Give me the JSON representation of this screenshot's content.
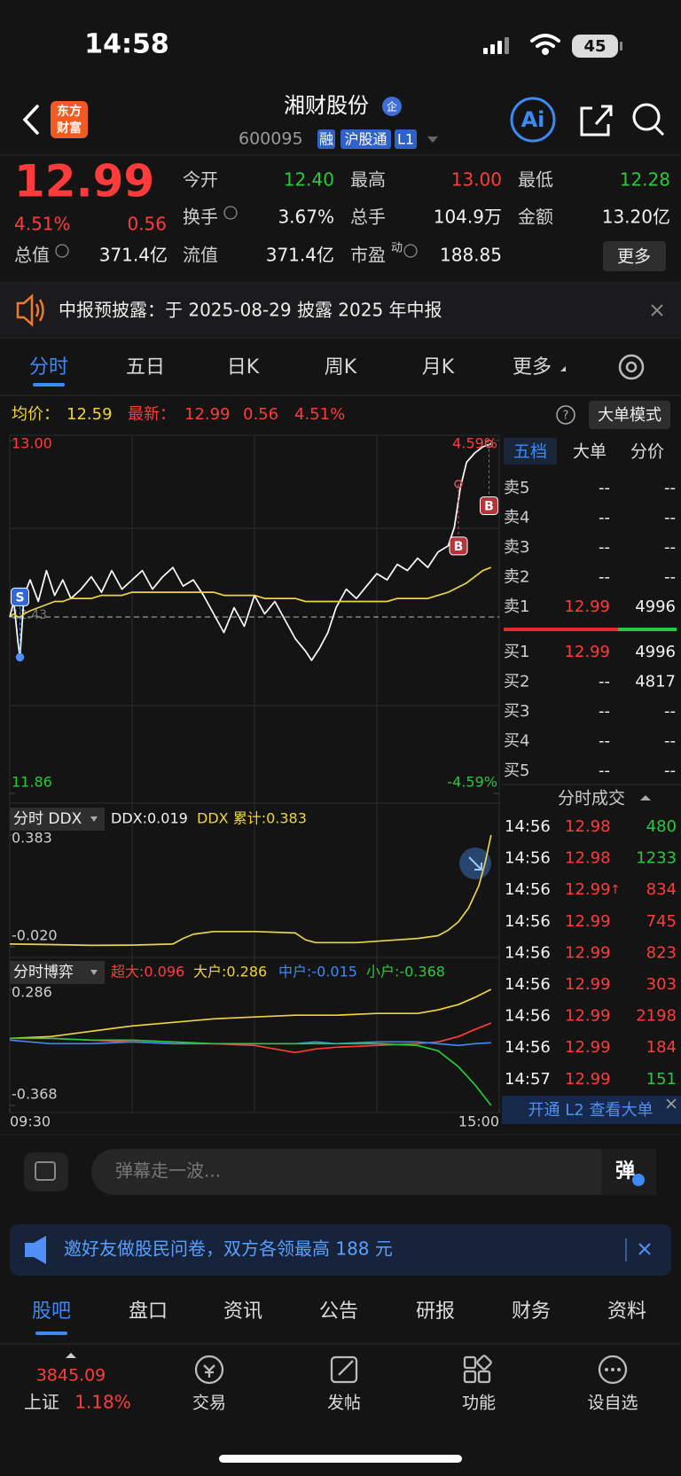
{
  "status_bar": {
    "time": "14:58",
    "battery": "45"
  },
  "header": {
    "logo": [
      "东方",
      "财富"
    ],
    "title": "湘财股份",
    "title_badge": "企",
    "code": "600095",
    "badges": [
      "融",
      "沪股通",
      "L1"
    ],
    "ai": "Ai"
  },
  "quote": {
    "price": "12.99",
    "change_pct": "4.51%",
    "change": "0.56",
    "fields": [
      {
        "label": "今开",
        "value": "12.40"
      },
      {
        "label": "最高",
        "value": "13.00"
      },
      {
        "label": "最低",
        "value": "12.28"
      },
      {
        "label": "换手",
        "value": "3.67%"
      },
      {
        "label": "总手",
        "value": "104.9万"
      },
      {
        "label": "金额",
        "value": "13.20亿"
      },
      {
        "label": "总值",
        "value": "371.4亿"
      },
      {
        "label": "流值",
        "value": "371.4亿"
      },
      {
        "label": "市盈",
        "sup": "动",
        "value": "188.85"
      }
    ],
    "more_button": "更多"
  },
  "notice": {
    "text": "中报预披露：于 2025-08-29 披露 2025 年中报"
  },
  "tabs": {
    "items": [
      "分时",
      "五日",
      "日K",
      "周K",
      "月K",
      "更多"
    ],
    "active": 0
  },
  "info": {
    "avg_label": "均价：",
    "avg": "12.59",
    "last_label": "最新：",
    "last": "12.99",
    "change": "0.56",
    "change_pct": "4.51%",
    "mode_button": "大单模式"
  },
  "chart_data": [
    {
      "type": "line",
      "x": [
        0,
        2,
        4,
        5,
        7,
        10,
        14,
        18,
        22,
        26,
        30,
        35,
        40,
        45,
        50,
        55,
        60,
        65,
        70,
        75,
        80,
        85,
        90,
        95,
        100,
        105,
        110,
        115,
        120,
        125,
        130,
        135,
        140,
        145,
        148,
        152,
        156,
        160,
        165,
        170,
        175,
        180,
        185,
        190,
        195,
        200,
        205,
        210,
        215,
        218,
        221,
        224,
        228,
        232,
        236
      ],
      "xlim": [
        0,
        240
      ],
      "ylim": [
        11.86,
        13.0
      ],
      "yticks": [
        {
          "value": 13.0,
          "label": "13.00"
        },
        11.86
      ],
      "y2lim": [
        -4.59,
        4.59
      ],
      "y2ticks": [
        {
          "value": 4.59,
          "label": "4.59%"
        },
        {
          "value": -4.59,
          "label": "-4.59%"
        }
      ],
      "reference_line": {
        "value": 12.43,
        "label": "12.43"
      },
      "series": [
        {
          "color": "#ffffff",
          "values": [
            12.43,
            12.48,
            12.35,
            12.3,
            12.5,
            12.55,
            12.48,
            12.58,
            12.5,
            12.55,
            12.49,
            12.52,
            12.56,
            12.51,
            12.58,
            12.52,
            12.55,
            12.58,
            12.52,
            12.56,
            12.59,
            12.53,
            12.55,
            12.5,
            12.44,
            12.38,
            12.46,
            12.4,
            12.5,
            12.44,
            12.48,
            12.42,
            12.36,
            12.32,
            12.29,
            12.33,
            12.38,
            12.46,
            12.52,
            12.49,
            12.53,
            12.57,
            12.55,
            12.6,
            12.58,
            12.62,
            12.59,
            12.64,
            12.66,
            12.72,
            12.85,
            12.93,
            12.96,
            12.98,
            12.99
          ]
        },
        {
          "color": "#f0d43a",
          "values": [
            12.43,
            12.44,
            12.43,
            12.43,
            12.44,
            12.45,
            12.46,
            12.47,
            12.48,
            12.48,
            12.49,
            12.49,
            12.49,
            12.5,
            12.5,
            12.5,
            12.51,
            12.51,
            12.51,
            12.51,
            12.51,
            12.51,
            12.51,
            12.51,
            12.51,
            12.5,
            12.5,
            12.5,
            12.5,
            12.49,
            12.49,
            12.49,
            12.49,
            12.48,
            12.48,
            12.48,
            12.48,
            12.48,
            12.48,
            12.48,
            12.48,
            12.48,
            12.48,
            12.49,
            12.49,
            12.49,
            12.49,
            12.5,
            12.51,
            12.52,
            12.53,
            12.54,
            12.56,
            12.58,
            12.59
          ]
        }
      ],
      "markers": [
        {
          "label": "S",
          "x": 5,
          "value": 12.3
        },
        {
          "label": "B",
          "x": 220,
          "value": 12.86
        },
        {
          "label": "B",
          "x": 235,
          "value": 12.99
        }
      ]
    },
    {
      "type": "line",
      "title": "分时 DDX",
      "annotations": [
        "DDX:0.019",
        "DDX 累计:0.383"
      ],
      "x": [
        0,
        20,
        40,
        60,
        80,
        85,
        90,
        100,
        120,
        140,
        145,
        150,
        170,
        190,
        200,
        210,
        215,
        220,
        225,
        230,
        233,
        236
      ],
      "xlim": [
        0,
        240
      ],
      "ylim": [
        -0.02,
        0.383
      ],
      "yticks": [
        0.383,
        {
          "value": -0.02,
          "label": "-0.020"
        }
      ],
      "series": [
        {
          "color": "#e8d44d",
          "values": [
            -0.01,
            -0.012,
            -0.015,
            -0.014,
            -0.01,
            0.01,
            0.025,
            0.035,
            0.035,
            0.03,
            0.005,
            -0.005,
            -0.005,
            0.005,
            0.01,
            0.02,
            0.04,
            0.07,
            0.12,
            0.2,
            0.28,
            0.383
          ]
        }
      ]
    },
    {
      "type": "line",
      "title": "分时博弈",
      "x": [
        0,
        20,
        40,
        60,
        80,
        100,
        120,
        140,
        150,
        160,
        180,
        200,
        210,
        220,
        228,
        236
      ],
      "xlim": [
        0,
        240
      ],
      "xticks": [
        {
          "value": 0,
          "label": "09:30"
        },
        {
          "value": 240,
          "label": "15:00"
        }
      ],
      "ylim": [
        -0.368,
        0.286
      ],
      "yticks": [
        0.286,
        -0.368
      ],
      "series": [
        {
          "name": "超大:0.096",
          "color": "#ff3b3b",
          "values": [
            0.01,
            0.01,
            0.0,
            -0.01,
            -0.02,
            -0.02,
            -0.03,
            -0.07,
            -0.05,
            -0.04,
            -0.03,
            -0.02,
            -0.01,
            0.02,
            0.06,
            0.096
          ]
        },
        {
          "name": "大户:0.286",
          "color": "#f0d43a",
          "values": [
            0.01,
            0.02,
            0.05,
            0.08,
            0.1,
            0.12,
            0.13,
            0.14,
            0.14,
            0.14,
            0.15,
            0.15,
            0.17,
            0.2,
            0.24,
            0.286
          ]
        },
        {
          "name": "中户:-0.015",
          "color": "#3d8af7",
          "values": [
            0.0,
            -0.02,
            -0.02,
            -0.01,
            -0.02,
            -0.02,
            -0.02,
            -0.02,
            -0.01,
            -0.02,
            -0.01,
            -0.01,
            -0.02,
            -0.03,
            -0.02,
            -0.015
          ]
        },
        {
          "name": "小户:-0.368",
          "color": "#2bc93a",
          "values": [
            0.01,
            0.01,
            0.0,
            0.0,
            -0.01,
            -0.02,
            -0.02,
            -0.02,
            -0.02,
            -0.02,
            -0.02,
            -0.03,
            -0.06,
            -0.15,
            -0.25,
            -0.368
          ]
        }
      ]
    }
  ],
  "order_book": {
    "tabs": [
      "五档",
      "大单",
      "分价"
    ],
    "asks": [
      {
        "label": "卖5",
        "price": "--",
        "volume": "--"
      },
      {
        "label": "卖4",
        "price": "--",
        "volume": "--"
      },
      {
        "label": "卖3",
        "price": "--",
        "volume": "--"
      },
      {
        "label": "卖2",
        "price": "--",
        "volume": "--"
      },
      {
        "label": "卖1",
        "price": "12.99",
        "volume": "4996"
      }
    ],
    "bids": [
      {
        "label": "买1",
        "price": "12.99",
        "volume": "4996"
      },
      {
        "label": "买2",
        "price": "--",
        "volume": "4817"
      },
      {
        "label": "买3",
        "price": "--",
        "volume": "--"
      },
      {
        "label": "买4",
        "price": "--",
        "volume": "--"
      },
      {
        "label": "买5",
        "price": "--",
        "volume": "--"
      }
    ]
  },
  "trades": {
    "title": "分时成交",
    "rows": [
      {
        "time": "14:56",
        "price": "12.98",
        "volume": "480",
        "side": "sell"
      },
      {
        "time": "14:56",
        "price": "12.98",
        "volume": "1233",
        "side": "sell"
      },
      {
        "time": "14:56",
        "price": "12.99",
        "arrow": "↑",
        "volume": "834",
        "side": "buy"
      },
      {
        "time": "14:56",
        "price": "12.99",
        "volume": "745",
        "side": "buy"
      },
      {
        "time": "14:56",
        "price": "12.99",
        "volume": "823",
        "side": "buy"
      },
      {
        "time": "14:56",
        "price": "12.99",
        "volume": "303",
        "side": "buy"
      },
      {
        "time": "14:56",
        "price": "12.99",
        "volume": "2198",
        "side": "buy"
      },
      {
        "time": "14:56",
        "price": "12.99",
        "volume": "184",
        "side": "buy"
      },
      {
        "time": "14:57",
        "price": "12.99",
        "volume": "151",
        "side": "sell"
      }
    ]
  },
  "l2_banner": "开通 L2 查看大单",
  "comment_bar": {
    "placeholder": "弹幕走一波...",
    "button": "弹"
  },
  "promo": "邀好友做股民问卷，双方各领最高 188 元",
  "bottom_tabs": {
    "items": [
      "股吧",
      "盘口",
      "资讯",
      "公告",
      "研报",
      "财务",
      "资料"
    ],
    "active": 0
  },
  "nav": {
    "index": {
      "value": "3845.09",
      "name": "上证",
      "change": "1.18%"
    },
    "items": [
      "交易",
      "发帖",
      "功能",
      "设自选"
    ]
  }
}
